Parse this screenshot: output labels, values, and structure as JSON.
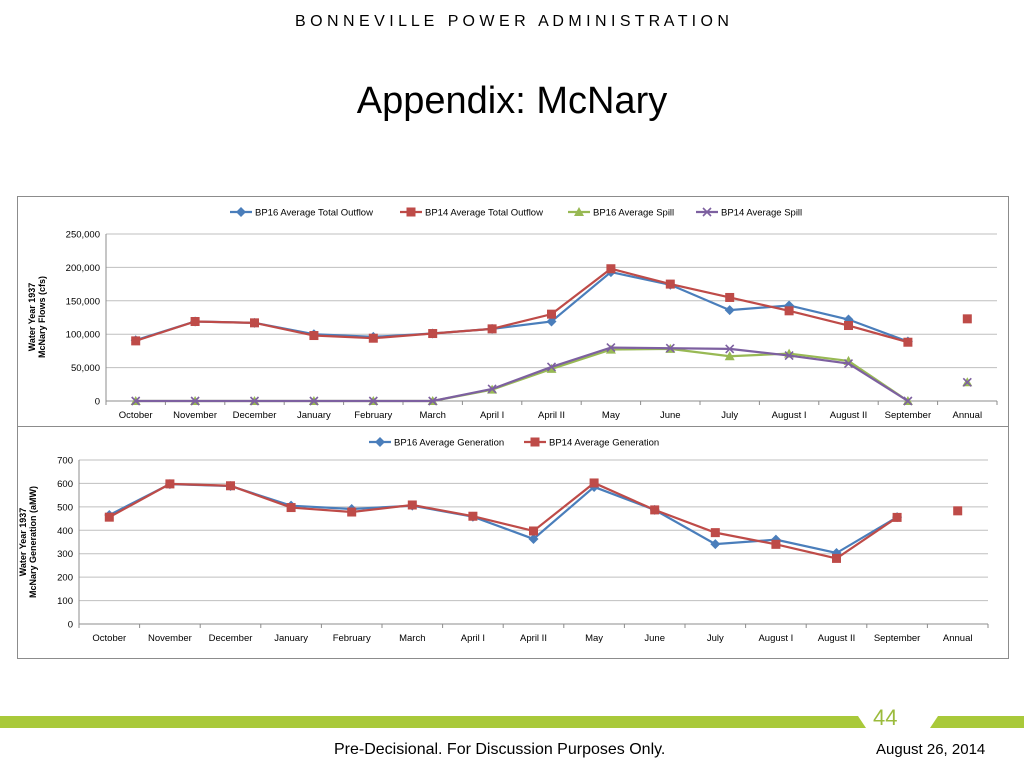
{
  "header": {
    "organization": "B O N N E V I L L E   P O W E R   A D M I N I S T R A T I O N",
    "title": "Appendix:  McNary"
  },
  "footer": {
    "page_number": "44",
    "note": "Pre-Decisional.  For Discussion Purposes Only.",
    "date": "August 26, 2014"
  },
  "colors": {
    "bp16_total": "#4a7ebb",
    "bp14_total": "#be4b48",
    "bp16_spill": "#98b954",
    "bp14_spill": "#7d60a0",
    "accent_bar": "#a9c93a"
  },
  "chart_data": [
    {
      "type": "line",
      "ylabel": "Water Year 1937\nMcNary Flows (cfs)",
      "ylim": [
        0,
        250000
      ],
      "yticks": [
        "0",
        "50,000",
        "100,000",
        "150,000",
        "200,000",
        "250,000"
      ],
      "grid": true,
      "legend": "top",
      "categories": [
        "October",
        "November",
        "December",
        "January",
        "February",
        "March",
        "April I",
        "April II",
        "May",
        "June",
        "July",
        "August I",
        "August II",
        "September",
        "Annual"
      ],
      "series": [
        {
          "name": "BP16 Average Total Outflow",
          "marker": "diamond",
          "color": "#4a7ebb",
          "values": [
            91000,
            119000,
            117000,
            100000,
            96000,
            101000,
            108000,
            119000,
            193000,
            174000,
            136000,
            143000,
            122000,
            89000,
            null
          ]
        },
        {
          "name": "BP14 Average Total Outflow",
          "marker": "square",
          "color": "#be4b48",
          "values": [
            90000,
            119000,
            117000,
            98000,
            94000,
            101000,
            108000,
            130000,
            198000,
            175000,
            155000,
            135000,
            113000,
            88000,
            123000
          ]
        },
        {
          "name": "BP16 Average Spill",
          "marker": "triangle",
          "color": "#98b954",
          "values": [
            0,
            0,
            0,
            0,
            0,
            0,
            17000,
            48000,
            77000,
            78000,
            67000,
            71000,
            60000,
            0,
            28000
          ]
        },
        {
          "name": "BP14 Average Spill",
          "marker": "x",
          "color": "#7d60a0",
          "values": [
            0,
            0,
            0,
            0,
            0,
            0,
            18000,
            51000,
            80000,
            79000,
            78000,
            68000,
            56000,
            0,
            28000
          ]
        }
      ]
    },
    {
      "type": "line",
      "ylabel": "Water Year 1937\nMcNary Generation (aMW)",
      "ylim": [
        0,
        700
      ],
      "yticks": [
        "0",
        "100",
        "200",
        "300",
        "400",
        "500",
        "600",
        "700"
      ],
      "grid": true,
      "legend": "top",
      "categories": [
        "October",
        "November",
        "December",
        "January",
        "February",
        "March",
        "April I",
        "April II",
        "May",
        "June",
        "July",
        "August I",
        "August II",
        "September",
        "Annual"
      ],
      "series": [
        {
          "name": "BP16 Average Generation",
          "marker": "diamond",
          "color": "#4a7ebb",
          "values": [
            465,
            597,
            589,
            505,
            491,
            505,
            458,
            363,
            585,
            487,
            341,
            360,
            303,
            456,
            null
          ]
        },
        {
          "name": "BP14 Average Generation",
          "marker": "square",
          "color": "#be4b48",
          "values": [
            456,
            598,
            590,
            497,
            478,
            508,
            460,
            397,
            602,
            487,
            390,
            340,
            280,
            455,
            483
          ]
        }
      ]
    }
  ]
}
